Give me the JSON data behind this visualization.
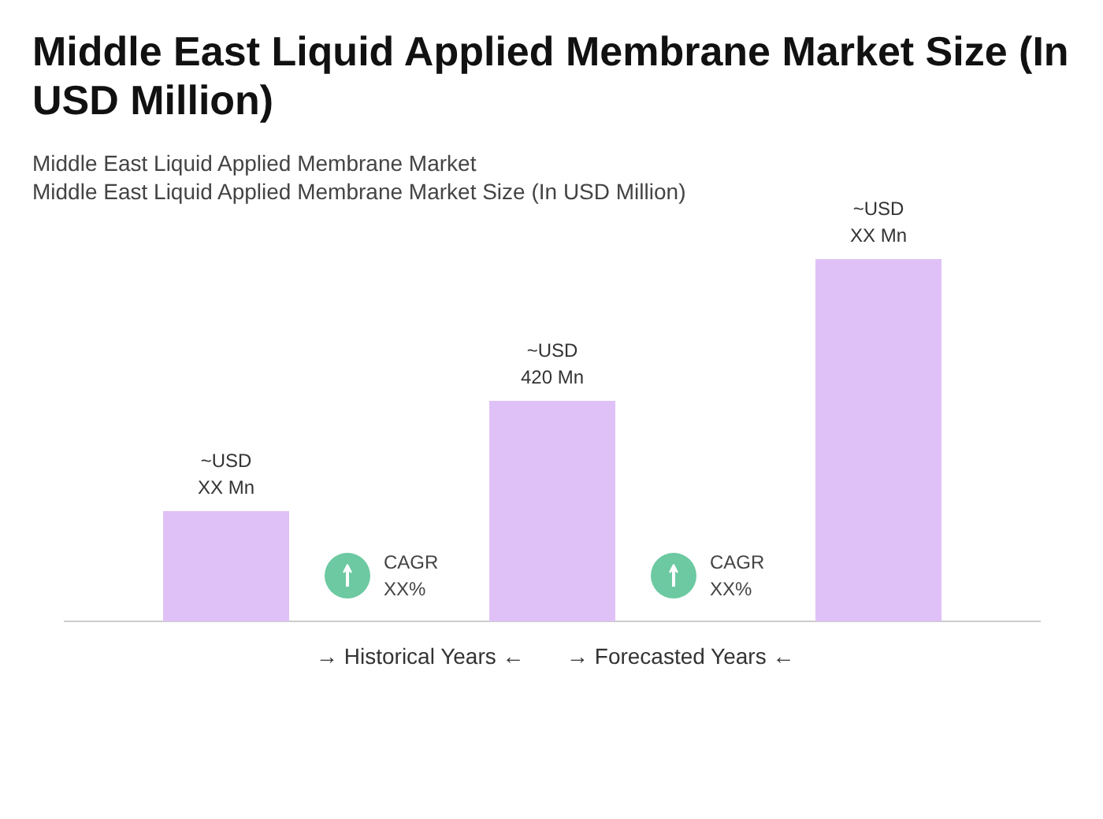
{
  "chart_data": {
    "type": "bar",
    "title": "Middle East Liquid Applied Membrane Market Size (In USD Million)",
    "subtitle": "Middle East Liquid Applied Membrane Market\nMiddle East Liquid Applied Membrane Market Size (In USD Million)",
    "categories": [
      null,
      null,
      null
    ],
    "values": [
      210,
      420,
      690
    ],
    "color": "#dfc1f7",
    "value_labels": [
      "~USD XX Mn",
      "~USD 420 Mn",
      "~USD XX Mn"
    ],
    "annotations": [
      "CAGR XX%",
      "CAGR XX%",
      "→  Historical Years  ←",
      "→  Forecasted Years  ←"
    ],
    "grid": false
  }
}
